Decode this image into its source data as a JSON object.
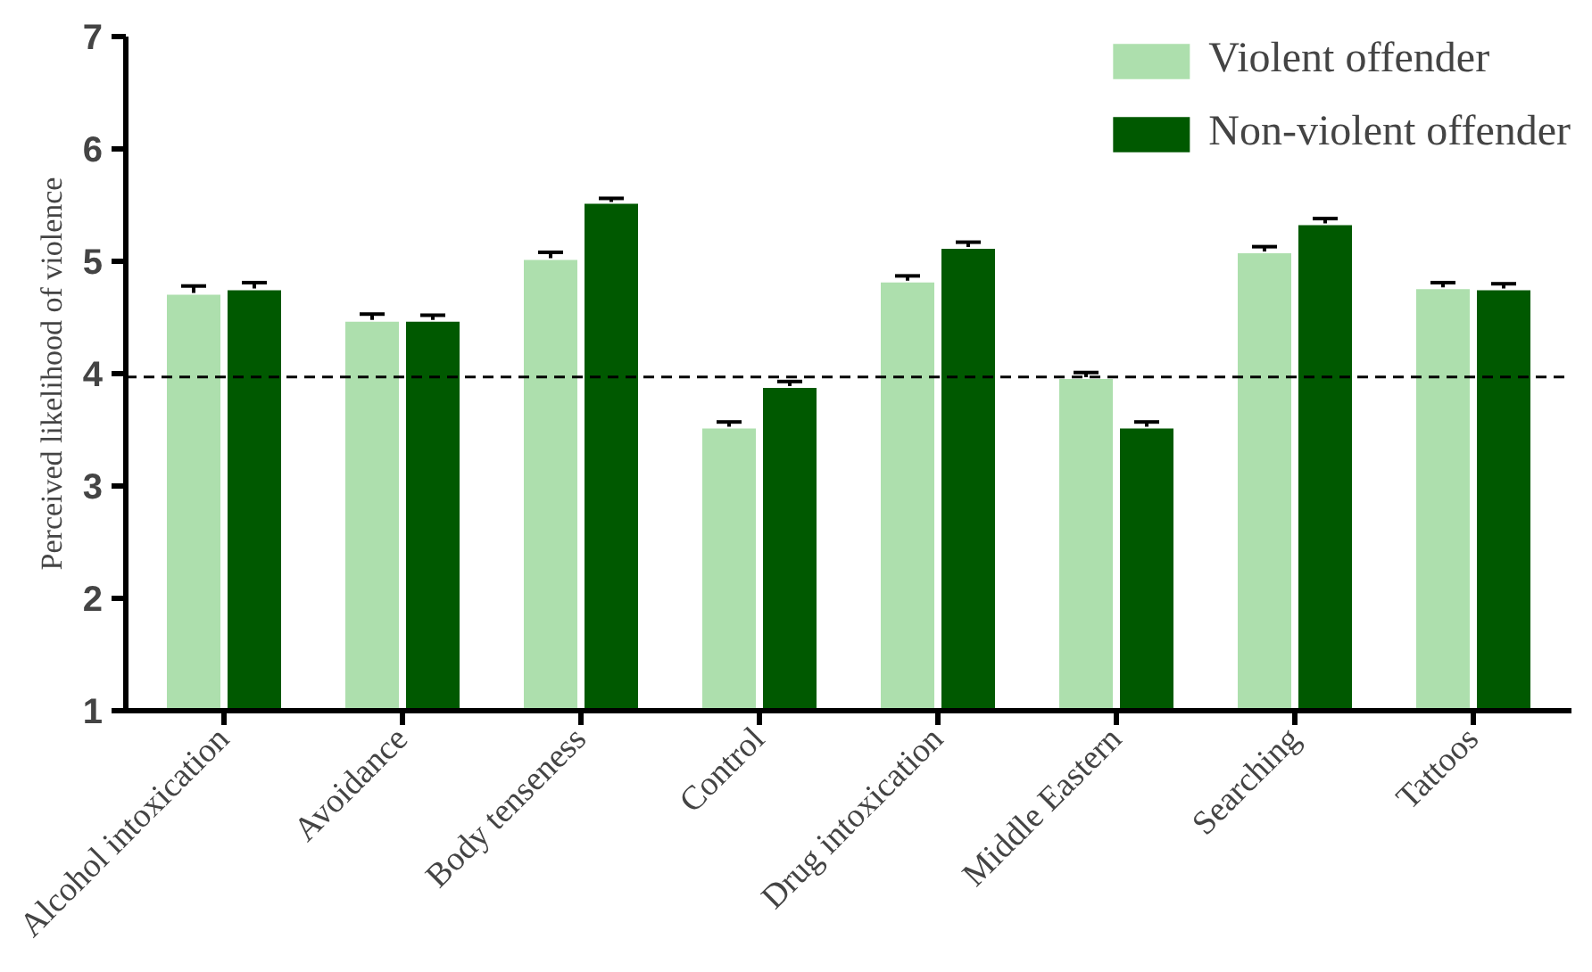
{
  "chart_data": {
    "type": "bar",
    "ylabel": "Perceived likelihood of violence",
    "categories": [
      "Alcohol intoxication",
      "Avoidance",
      "Body tenseness",
      "Control",
      "Drug intoxication",
      "Middle Eastern",
      "Searching",
      "Tattoos"
    ],
    "series": [
      {
        "name": "Violent offender",
        "color": "#addfad",
        "values": [
          4.71,
          4.47,
          5.02,
          3.52,
          4.82,
          3.96,
          5.08,
          4.76
        ],
        "errors": [
          0.07,
          0.06,
          0.06,
          0.05,
          0.05,
          0.05,
          0.05,
          0.05
        ]
      },
      {
        "name": "Non-violent offender",
        "color": "#005900",
        "values": [
          4.75,
          4.47,
          5.52,
          3.88,
          5.12,
          3.52,
          5.33,
          4.75
        ],
        "errors": [
          0.06,
          0.05,
          0.04,
          0.05,
          0.05,
          0.05,
          0.05,
          0.05
        ]
      }
    ],
    "ylim": [
      1,
      7
    ],
    "yticks": [
      1,
      2,
      3,
      4,
      5,
      6,
      7
    ],
    "ref_lines": [
      {
        "axis": "y",
        "value": 3.97,
        "line_style": "dashed"
      }
    ],
    "grid": false,
    "legend": "top right"
  }
}
